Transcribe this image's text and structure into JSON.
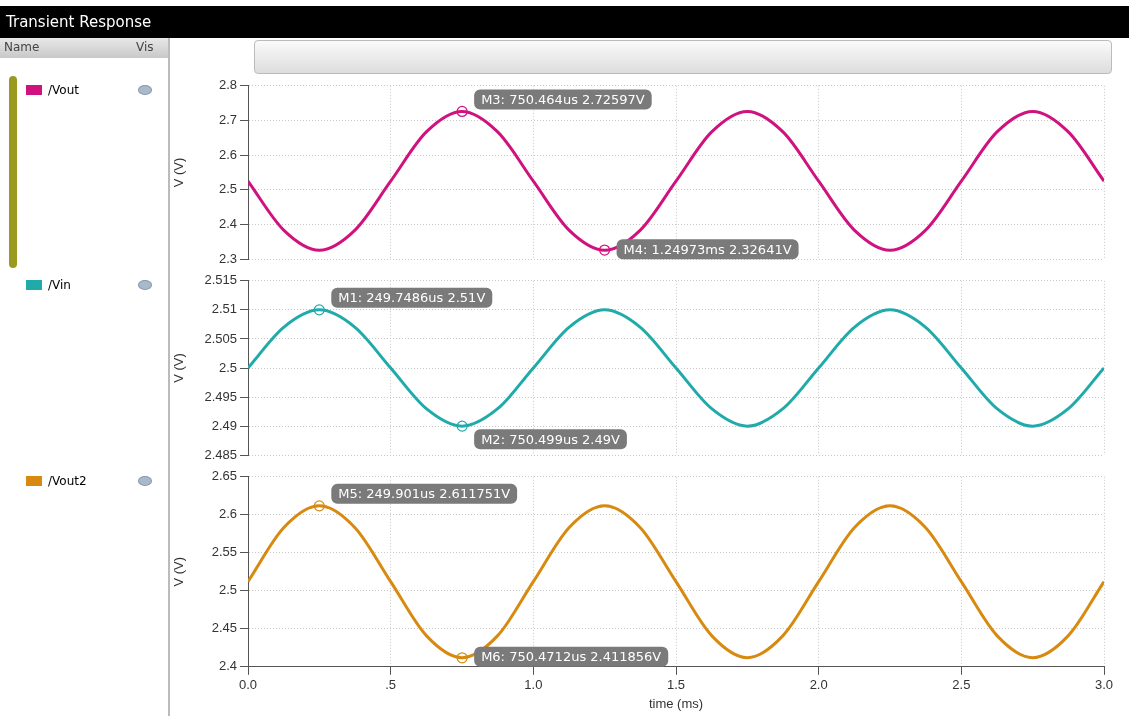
{
  "chart_data": [
    {
      "type": "line",
      "title": "Transient Response",
      "ylabel": "V (V)",
      "legend": "left",
      "grid": true,
      "marker": "none",
      "line_style": "solid",
      "tick_labels": "y",
      "annotations": [
        "Name",
        "Vis",
        {
          "text": "M3: 750.464us 2.72597V",
          "x": 0.750464,
          "y": 2.72597
        },
        {
          "text": "M4: 1.24973ms 2.32641V",
          "x": 1.24973,
          "y": 2.32641
        }
      ],
      "x": [
        0,
        0.125,
        0.25,
        0.375,
        0.5,
        0.625,
        0.75,
        0.875,
        1,
        1.125,
        1.25,
        1.375,
        1.5,
        1.625,
        1.75,
        1.875,
        2,
        2.125,
        2.25,
        2.375,
        2.5,
        2.625,
        2.75,
        2.875,
        3
      ],
      "xlim": [
        0,
        3
      ],
      "xticks": [
        {
          "value": 0,
          "label": null
        },
        {
          "value": 0.5,
          "label": null
        },
        {
          "value": 1,
          "label": null
        },
        {
          "value": 1.5,
          "label": null
        },
        {
          "value": 2,
          "label": null
        },
        {
          "value": 2.5,
          "label": null
        },
        {
          "value": 3,
          "label": null
        }
      ],
      "ylim": [
        2.3,
        2.8
      ],
      "yticks": [
        2.3,
        2.4,
        2.5,
        2.6,
        2.7,
        2.8
      ],
      "series": [
        {
          "name": "/Vout",
          "color": "#d0127f",
          "values": [
            2.525,
            2.384,
            2.326,
            2.384,
            2.525,
            2.667,
            2.726,
            2.667,
            2.525,
            2.384,
            2.326,
            2.384,
            2.525,
            2.667,
            2.726,
            2.667,
            2.525,
            2.384,
            2.326,
            2.384,
            2.525,
            2.667,
            2.726,
            2.667,
            2.525
          ]
        }
      ]
    },
    {
      "type": "line",
      "ylabel": "V (V)",
      "legend": "left",
      "grid": true,
      "marker": "none",
      "line_style": "solid",
      "tick_labels": "y",
      "annotations": [
        {
          "text": "M1: 249.7486us 2.51V",
          "x": 0.2497486,
          "y": 2.51
        },
        {
          "text": "M2: 750.499us 2.49V",
          "x": 0.750499,
          "y": 2.49
        }
      ],
      "x": [
        0,
        0.125,
        0.25,
        0.375,
        0.5,
        0.625,
        0.75,
        0.875,
        1,
        1.125,
        1.25,
        1.375,
        1.5,
        1.625,
        1.75,
        1.875,
        2,
        2.125,
        2.25,
        2.375,
        2.5,
        2.625,
        2.75,
        2.875,
        3
      ],
      "xlim": [
        0,
        3
      ],
      "xticks": [
        {
          "value": 0,
          "label": null
        },
        {
          "value": 0.5,
          "label": null
        },
        {
          "value": 1,
          "label": null
        },
        {
          "value": 1.5,
          "label": null
        },
        {
          "value": 2,
          "label": null
        },
        {
          "value": 2.5,
          "label": null
        },
        {
          "value": 3,
          "label": null
        }
      ],
      "ylim": [
        2.485,
        2.515
      ],
      "yticks": [
        2.485,
        2.49,
        2.495,
        2.5,
        2.505,
        2.51,
        2.515
      ],
      "series": [
        {
          "name": "/Vin",
          "color": "#20aaaa",
          "values": [
            2.5,
            2.507,
            2.51,
            2.507,
            2.5,
            2.493,
            2.49,
            2.493,
            2.5,
            2.507,
            2.51,
            2.507,
            2.5,
            2.493,
            2.49,
            2.493,
            2.5,
            2.507,
            2.51,
            2.507,
            2.5,
            2.493,
            2.49,
            2.493,
            2.5
          ]
        }
      ]
    },
    {
      "type": "line",
      "xlabel": "time (ms)",
      "ylabel": "V (V)",
      "legend": "left",
      "grid": true,
      "marker": "none",
      "line_style": "solid",
      "annotations": [
        {
          "text": "M5: 249.901us 2.611751V",
          "x": 0.249901,
          "y": 2.611751
        },
        {
          "text": "M6: 750.4712us 2.411856V",
          "x": 0.7504712,
          "y": 2.411856
        }
      ],
      "x": [
        0,
        0.125,
        0.25,
        0.375,
        0.5,
        0.625,
        0.75,
        0.875,
        1,
        1.125,
        1.25,
        1.375,
        1.5,
        1.625,
        1.75,
        1.875,
        2,
        2.125,
        2.25,
        2.375,
        2.5,
        2.625,
        2.75,
        2.875,
        3
      ],
      "xlim": [
        0,
        3
      ],
      "xticks": [
        {
          "value": 0,
          "label": "0.0"
        },
        {
          "value": 0.5,
          "label": ".5"
        },
        {
          "value": 1,
          "label": "1.0"
        },
        {
          "value": 1.5,
          "label": "1.5"
        },
        {
          "value": 2,
          "label": "2.0"
        },
        {
          "value": 2.5,
          "label": "2.5"
        },
        {
          "value": 3,
          "label": "3.0"
        }
      ],
      "ylim": [
        2.4,
        2.65
      ],
      "yticks": [
        2.4,
        2.45,
        2.5,
        2.55,
        2.6,
        2.65
      ],
      "series": [
        {
          "name": "/Vout2",
          "color": "#d88a10",
          "values": [
            2.512,
            2.583,
            2.612,
            2.583,
            2.512,
            2.441,
            2.412,
            2.441,
            2.512,
            2.583,
            2.612,
            2.583,
            2.512,
            2.441,
            2.412,
            2.441,
            2.512,
            2.583,
            2.612,
            2.583,
            2.512,
            2.441,
            2.412,
            2.441,
            2.512
          ]
        }
      ]
    }
  ]
}
